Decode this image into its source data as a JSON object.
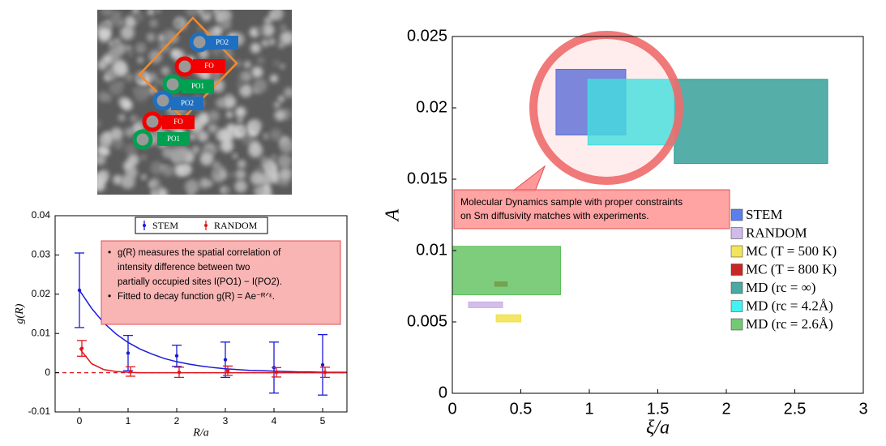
{
  "image": {
    "labels": [
      {
        "text": "PO2",
        "color": "#1f6fc0"
      },
      {
        "text": "FO",
        "color": "#f00000"
      },
      {
        "text": "PO1",
        "color": "#00a050"
      },
      {
        "text": "PO2",
        "color": "#1f6fc0"
      },
      {
        "text": "FO",
        "color": "#f00000"
      },
      {
        "text": "PO1",
        "color": "#00a050"
      }
    ]
  },
  "chart_data": [
    {
      "type": "errorbar",
      "xlabel": "R/a",
      "ylabel": "g(R)",
      "x": [
        0,
        1,
        2,
        3,
        4,
        5
      ],
      "xlim": [
        -0.5,
        5.5
      ],
      "xticks": [
        0,
        1,
        2,
        3,
        4,
        5
      ],
      "ylim": [
        -0.01,
        0.04
      ],
      "yticks": [
        -0.01,
        0,
        0.01,
        0.02,
        0.03,
        0.04
      ],
      "zero_line": 0,
      "fit_x": [
        0,
        0.25,
        0.5,
        0.75,
        1,
        1.25,
        1.5,
        1.75,
        2,
        2.25,
        2.5,
        2.75,
        3,
        3.25,
        3.5,
        3.75,
        4,
        4.25,
        4.5,
        4.75,
        5,
        5.25,
        5.5
      ],
      "series": [
        {
          "name": "STEM",
          "color": "#1a1adc",
          "values": [
            0.021,
            0.005,
            0.0043,
            0.0033,
            0.0013,
            0.002
          ],
          "errors": [
            0.0095,
            0.0045,
            0.0027,
            0.0045,
            0.0065,
            0.0077
          ],
          "fit": [
            0.021,
            0.0164,
            0.0127,
            0.0099,
            0.0077,
            0.006,
            0.0047,
            0.0036,
            0.0028,
            0.0022,
            0.0017,
            0.0013,
            0.001,
            0.0008,
            0.0006,
            0.0005,
            0.0004,
            0.0003,
            0.0002,
            0.0002,
            0.0001,
            0.0001,
            0.0001
          ]
        },
        {
          "name": "RANDOM",
          "color": "#e0151b",
          "values": [
            0.0062,
            0.0003,
            0.0001,
            0.0005,
            0.0001,
            0.0001
          ],
          "errors": [
            0.002,
            0.0012,
            0.0013,
            0.0012,
            0.0012,
            0.0013
          ],
          "fit": [
            0.0062,
            0.0023,
            0.0008,
            0.0003,
            0.0001,
            0,
            0,
            0,
            0,
            0,
            0,
            0,
            0,
            0,
            0,
            0,
            0,
            0,
            0,
            0,
            0,
            0,
            0
          ]
        }
      ],
      "annotation": [
        [
          "g(R) measures the spatial correlation of",
          "intensity difference between two",
          "partially occupied sites I(PO1) − I(PO2)."
        ],
        [
          "Fitted to decay function g(R) = Ae⁻ᴿᐟᵋ."
        ]
      ]
    },
    {
      "type": "range-rect",
      "xlabel": "ξ/a",
      "ylabel": "A",
      "xlim": [
        0,
        3
      ],
      "xticks": [
        0,
        0.5,
        1,
        1.5,
        2,
        2.5,
        3
      ],
      "ylim": [
        0,
        0.025
      ],
      "yticks": [
        0,
        0.005,
        0.01,
        0.015,
        0.02,
        0.025
      ],
      "series": [
        {
          "name": "STEM",
          "color": "#3f6ae6",
          "x": [
            0.757,
            1.266
          ],
          "y": [
            0.0181,
            0.0227
          ]
        },
        {
          "name": "RANDOM",
          "color": "#c8aee6",
          "x": [
            0.118,
            0.367
          ],
          "y": [
            0.006,
            0.0064
          ]
        },
        {
          "name": "MC (T = 500 K)",
          "color": "#f0e040",
          "x": [
            0.32,
            0.5
          ],
          "y": [
            0.005,
            0.0055
          ]
        },
        {
          "name": "MC (T = 800 K)",
          "color": "#c00000",
          "x": [
            0.31,
            0.4
          ],
          "y": [
            0.0075,
            0.0078
          ]
        },
        {
          "name": "MD (rc = ∞)",
          "color": "#2a9a92",
          "x": [
            1.62,
            2.74
          ],
          "y": [
            0.0161,
            0.022
          ]
        },
        {
          "name": "MD (rc = 4.2Å)",
          "color": "#22f0f0",
          "x": [
            0.99,
            1.62
          ],
          "y": [
            0.0174,
            0.022
          ]
        },
        {
          "name": "MD (rc = 2.6Å)",
          "color": "#5cc05c",
          "x": [
            0,
            0.79
          ],
          "y": [
            0.0069,
            0.0103
          ]
        }
      ],
      "annotation": [
        "Molecular Dynamics sample with  proper constraints",
        "on Sm diffusivity matches with experiments."
      ]
    }
  ]
}
